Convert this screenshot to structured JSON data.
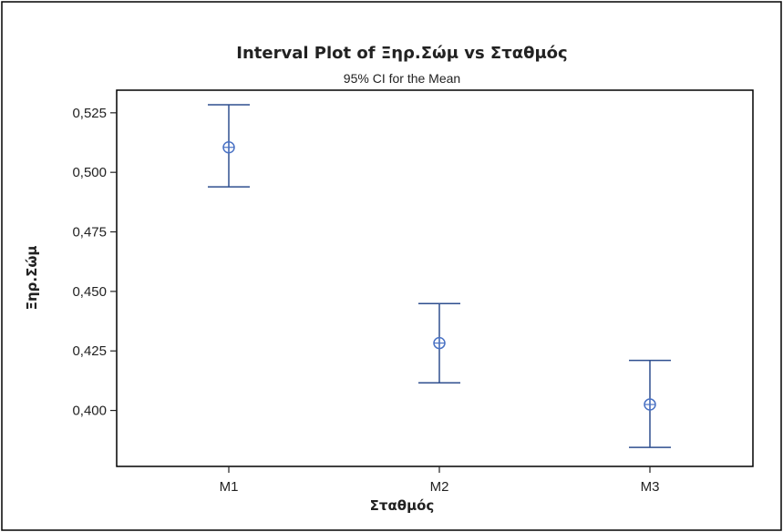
{
  "chart_data": {
    "type": "interval",
    "title": "Interval Plot of Ξηρ.Σώμ vs Σταθμός",
    "subtitle": "95% CI for the Mean",
    "xlabel": "Σταθμός",
    "ylabel": "Ξηρ.Σώμ",
    "categories": [
      "M1",
      "M2",
      "M3"
    ],
    "series": [
      {
        "mean": [
          0.5105,
          0.4283,
          0.4025
        ],
        "lower": [
          0.4939,
          0.4116,
          0.3845
        ],
        "upper": [
          0.5284,
          0.4449,
          0.421
        ]
      }
    ],
    "ylim": [
      0.3765,
      0.5345
    ],
    "yticks": [
      0.4,
      0.425,
      0.45,
      0.475,
      0.5,
      0.525
    ],
    "ytick_labels": [
      "0,400",
      "0,425",
      "0,450",
      "0,475",
      "0,500",
      "0,525"
    ],
    "grid": false,
    "legend": "none",
    "colors": {
      "interval": "#2f4f8f",
      "mean_marker": "#4a72c4",
      "axis": "#222222",
      "frame": "#000000"
    }
  }
}
